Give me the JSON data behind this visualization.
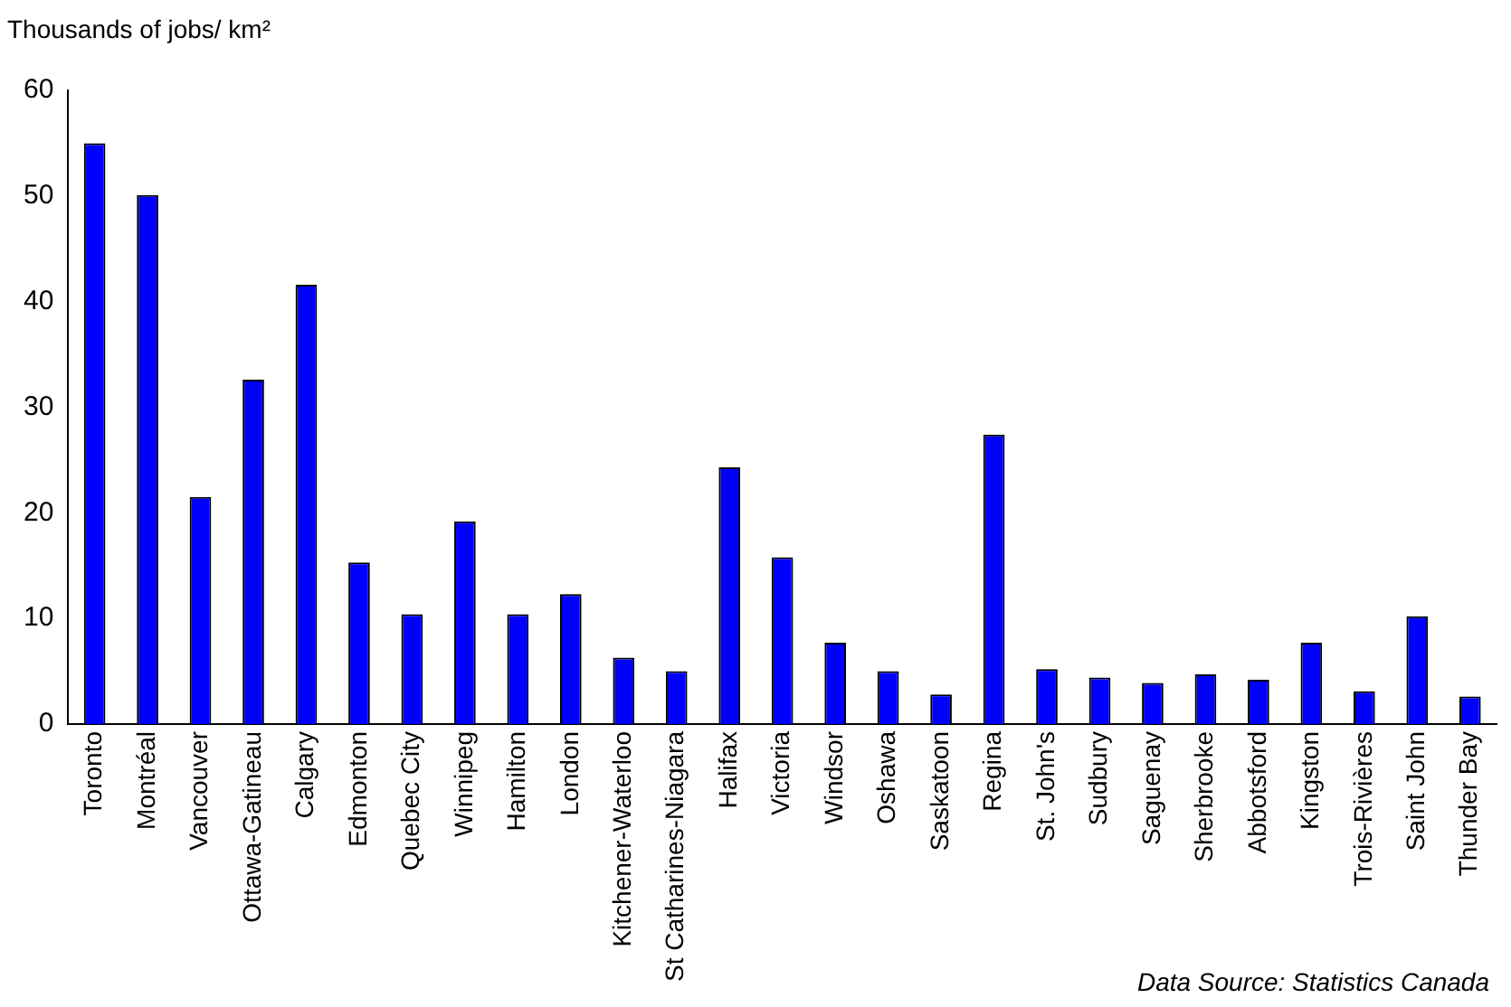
{
  "chart_data": {
    "type": "bar",
    "ylabel": "Thousands of jobs/ km²",
    "categories": [
      "Toronto",
      "Montréal",
      "Vancouver",
      "Ottawa-Gatineau",
      "Calgary",
      "Edmonton",
      "Quebec City",
      "Winnipeg",
      "Hamilton",
      "London",
      "Kitchener-Waterloo",
      "St Catharines-Niagara",
      "Halifax",
      "Victoria",
      "Windsor",
      "Oshawa",
      "Saskatoon",
      "Regina",
      "St. John's",
      "Sudbury",
      "Saguenay",
      "Sherbrooke",
      "Abbotsford",
      "Kingston",
      "Trois-Rivières",
      "Saint John",
      "Thunder Bay"
    ],
    "values": [
      55.0,
      50.1,
      21.5,
      32.6,
      41.6,
      15.3,
      10.4,
      19.2,
      10.4,
      12.3,
      6.3,
      5.0,
      24.3,
      15.8,
      7.7,
      5.0,
      2.8,
      27.4,
      5.2,
      4.4,
      3.9,
      4.7,
      4.2,
      7.7,
      3.1,
      10.2,
      2.6
    ],
    "color": "#0000ff",
    "ylim": [
      0,
      60
    ],
    "yticks": [
      0,
      10,
      20,
      30,
      40,
      50,
      60
    ],
    "grid": false,
    "legend": false,
    "annotations": [
      "Data Source: Statistics Canada"
    ]
  }
}
